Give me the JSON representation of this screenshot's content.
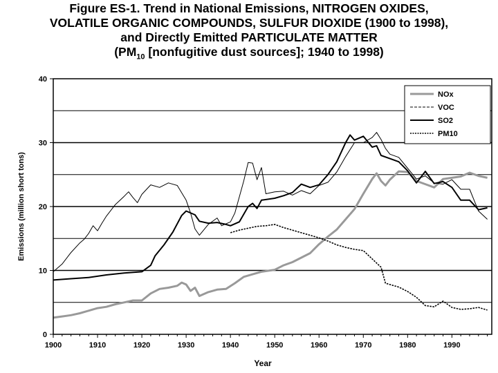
{
  "title_lines": [
    "Figure ES-1.  Trend in National Emissions, NITROGEN OXIDES,",
    "VOLATILE ORGANIC COMPOUNDS, SULFUR DIOXIDE (1900 to 1998),",
    "and Directly Emitted  PARTICULATE MATTER"
  ],
  "title_line4": {
    "prefix": "(PM",
    "sub": "10",
    "suffix": " [nonfugitive dust sources]; 1940 to 1998)"
  },
  "chart_data": {
    "type": "line",
    "xlabel": "Year",
    "ylabel": "Emissions (million short tons)",
    "xlim": [
      1900,
      1999
    ],
    "ylim": [
      0,
      40
    ],
    "xticks": [
      1900,
      1910,
      1920,
      1930,
      1940,
      1950,
      1960,
      1970,
      1980,
      1990
    ],
    "yticks": [
      0,
      10,
      20,
      30,
      40
    ],
    "gridlines": [
      5,
      10,
      15,
      20,
      25,
      30,
      35
    ],
    "legend_position": "top-right",
    "series": [
      {
        "name": "NOx",
        "style": "gray-thick",
        "points": [
          [
            1900,
            2.6
          ],
          [
            1902,
            2.8
          ],
          [
            1904,
            3.0
          ],
          [
            1906,
            3.3
          ],
          [
            1908,
            3.7
          ],
          [
            1910,
            4.1
          ],
          [
            1912,
            4.3
          ],
          [
            1914,
            4.7
          ],
          [
            1916,
            5.0
          ],
          [
            1918,
            5.3
          ],
          [
            1920,
            5.3
          ],
          [
            1922,
            6.4
          ],
          [
            1924,
            7.1
          ],
          [
            1926,
            7.3
          ],
          [
            1928,
            7.6
          ],
          [
            1929,
            8.1
          ],
          [
            1930,
            7.8
          ],
          [
            1931,
            6.8
          ],
          [
            1932,
            7.3
          ],
          [
            1933,
            6.0
          ],
          [
            1935,
            6.6
          ],
          [
            1937,
            7.0
          ],
          [
            1939,
            7.1
          ],
          [
            1941,
            8.0
          ],
          [
            1943,
            9.0
          ],
          [
            1945,
            9.4
          ],
          [
            1947,
            9.8
          ],
          [
            1949,
            10.0
          ],
          [
            1950,
            10.1
          ],
          [
            1952,
            10.8
          ],
          [
            1954,
            11.3
          ],
          [
            1956,
            12.0
          ],
          [
            1958,
            12.7
          ],
          [
            1960,
            14.1
          ],
          [
            1962,
            15.3
          ],
          [
            1964,
            16.4
          ],
          [
            1966,
            18.0
          ],
          [
            1968,
            19.6
          ],
          [
            1970,
            22.0
          ],
          [
            1972,
            24.3
          ],
          [
            1973,
            25.2
          ],
          [
            1974,
            24.0
          ],
          [
            1975,
            23.3
          ],
          [
            1976,
            24.2
          ],
          [
            1978,
            25.5
          ],
          [
            1980,
            25.4
          ],
          [
            1982,
            24.0
          ],
          [
            1984,
            23.5
          ],
          [
            1986,
            23.0
          ],
          [
            1988,
            24.3
          ],
          [
            1990,
            24.5
          ],
          [
            1992,
            24.7
          ],
          [
            1994,
            25.3
          ],
          [
            1996,
            24.8
          ],
          [
            1998,
            24.5
          ]
        ]
      },
      {
        "name": "VOC",
        "style": "black-thin",
        "points": [
          [
            1900,
            9.8
          ],
          [
            1902,
            11.0
          ],
          [
            1904,
            12.8
          ],
          [
            1906,
            14.3
          ],
          [
            1907,
            14.9
          ],
          [
            1908,
            15.8
          ],
          [
            1909,
            17.0
          ],
          [
            1910,
            16.2
          ],
          [
            1911,
            17.4
          ],
          [
            1912,
            18.5
          ],
          [
            1914,
            20.3
          ],
          [
            1916,
            21.6
          ],
          [
            1917,
            22.3
          ],
          [
            1918,
            21.4
          ],
          [
            1919,
            20.6
          ],
          [
            1920,
            21.9
          ],
          [
            1922,
            23.4
          ],
          [
            1924,
            23.0
          ],
          [
            1926,
            23.7
          ],
          [
            1928,
            23.3
          ],
          [
            1930,
            21.0
          ],
          [
            1931,
            19.0
          ],
          [
            1932,
            16.5
          ],
          [
            1933,
            15.5
          ],
          [
            1935,
            17.2
          ],
          [
            1937,
            18.2
          ],
          [
            1938,
            17.0
          ],
          [
            1940,
            17.6
          ],
          [
            1941,
            19.0
          ],
          [
            1943,
            24.0
          ],
          [
            1944,
            26.9
          ],
          [
            1945,
            26.8
          ],
          [
            1946,
            24.2
          ],
          [
            1947,
            26.1
          ],
          [
            1948,
            22.0
          ],
          [
            1950,
            22.3
          ],
          [
            1952,
            22.4
          ],
          [
            1954,
            21.8
          ],
          [
            1956,
            22.5
          ],
          [
            1958,
            22.0
          ],
          [
            1960,
            23.3
          ],
          [
            1962,
            23.8
          ],
          [
            1964,
            25.4
          ],
          [
            1966,
            27.8
          ],
          [
            1968,
            30.0
          ],
          [
            1970,
            30.0
          ],
          [
            1972,
            30.8
          ],
          [
            1973,
            31.6
          ],
          [
            1974,
            30.5
          ],
          [
            1975,
            29.1
          ],
          [
            1976,
            28.2
          ],
          [
            1978,
            27.7
          ],
          [
            1980,
            26.0
          ],
          [
            1982,
            24.3
          ],
          [
            1984,
            24.8
          ],
          [
            1986,
            23.7
          ],
          [
            1988,
            23.5
          ],
          [
            1990,
            24.2
          ],
          [
            1992,
            22.7
          ],
          [
            1994,
            22.7
          ],
          [
            1995,
            21.0
          ],
          [
            1996,
            19.3
          ],
          [
            1998,
            18.0
          ]
        ]
      },
      {
        "name": "SO2",
        "style": "black-thick",
        "points": [
          [
            1900,
            8.5
          ],
          [
            1904,
            8.7
          ],
          [
            1908,
            8.9
          ],
          [
            1912,
            9.3
          ],
          [
            1916,
            9.6
          ],
          [
            1920,
            9.8
          ],
          [
            1922,
            10.8
          ],
          [
            1923,
            12.3
          ],
          [
            1925,
            14.0
          ],
          [
            1927,
            16.0
          ],
          [
            1929,
            18.6
          ],
          [
            1930,
            19.3
          ],
          [
            1932,
            18.7
          ],
          [
            1933,
            17.7
          ],
          [
            1935,
            17.4
          ],
          [
            1937,
            17.5
          ],
          [
            1939,
            17.2
          ],
          [
            1940,
            17.0
          ],
          [
            1942,
            17.6
          ],
          [
            1944,
            20.0
          ],
          [
            1945,
            20.5
          ],
          [
            1946,
            19.7
          ],
          [
            1947,
            21.0
          ],
          [
            1950,
            21.3
          ],
          [
            1952,
            21.7
          ],
          [
            1954,
            22.2
          ],
          [
            1956,
            23.5
          ],
          [
            1958,
            23.0
          ],
          [
            1960,
            23.4
          ],
          [
            1962,
            25.0
          ],
          [
            1964,
            27.0
          ],
          [
            1966,
            30.0
          ],
          [
            1967,
            31.2
          ],
          [
            1968,
            30.4
          ],
          [
            1970,
            31.0
          ],
          [
            1972,
            29.3
          ],
          [
            1973,
            29.5
          ],
          [
            1974,
            28.0
          ],
          [
            1976,
            27.5
          ],
          [
            1978,
            27.0
          ],
          [
            1980,
            25.6
          ],
          [
            1982,
            23.7
          ],
          [
            1984,
            25.5
          ],
          [
            1986,
            23.6
          ],
          [
            1988,
            23.9
          ],
          [
            1990,
            23.0
          ],
          [
            1992,
            21.0
          ],
          [
            1994,
            21.0
          ],
          [
            1996,
            19.5
          ],
          [
            1998,
            19.8
          ]
        ]
      },
      {
        "name": "PM10",
        "style": "black-dotted",
        "points": [
          [
            1940,
            15.9
          ],
          [
            1942,
            16.3
          ],
          [
            1944,
            16.6
          ],
          [
            1946,
            16.9
          ],
          [
            1948,
            17.0
          ],
          [
            1950,
            17.2
          ],
          [
            1952,
            16.7
          ],
          [
            1954,
            16.3
          ],
          [
            1956,
            15.9
          ],
          [
            1958,
            15.5
          ],
          [
            1960,
            15.1
          ],
          [
            1962,
            14.6
          ],
          [
            1964,
            14.0
          ],
          [
            1966,
            13.6
          ],
          [
            1968,
            13.3
          ],
          [
            1970,
            13.1
          ],
          [
            1972,
            11.8
          ],
          [
            1974,
            10.5
          ],
          [
            1975,
            8.0
          ],
          [
            1976,
            7.8
          ],
          [
            1978,
            7.4
          ],
          [
            1980,
            6.7
          ],
          [
            1982,
            5.8
          ],
          [
            1984,
            4.5
          ],
          [
            1986,
            4.3
          ],
          [
            1988,
            5.2
          ],
          [
            1990,
            4.2
          ],
          [
            1992,
            3.9
          ],
          [
            1994,
            4.0
          ],
          [
            1996,
            4.2
          ],
          [
            1998,
            3.8
          ]
        ]
      }
    ]
  }
}
